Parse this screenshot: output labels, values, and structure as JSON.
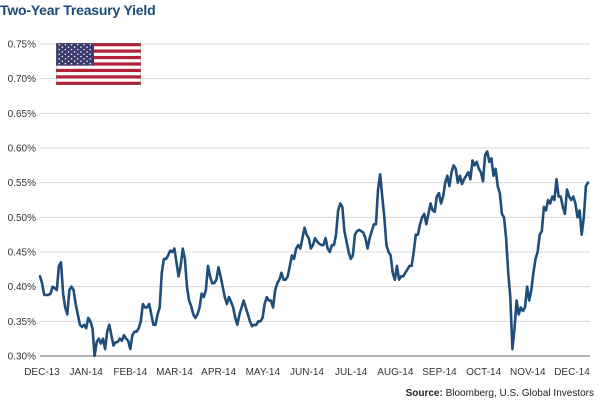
{
  "chart_data": {
    "type": "line",
    "title": "Two-Year Treasury Yield",
    "xlabel": "",
    "ylabel": "",
    "ylim": [
      0.3,
      0.75
    ],
    "yticks": [
      "0.30%",
      "0.35%",
      "0.40%",
      "0.45%",
      "0.50%",
      "0.55%",
      "0.60%",
      "0.65%",
      "0.70%",
      "0.75%"
    ],
    "xticks": [
      "DEC-13",
      "JAN-14",
      "FEB-14",
      "MAR-14",
      "APR-14",
      "MAY-14",
      "JUN-14",
      "JUL-14",
      "AUG-14",
      "SEP-14",
      "OCT-14",
      "NOV-14",
      "DEC-14"
    ],
    "grid": "horizontal",
    "line_color": "#1f4e7a",
    "series": [
      {
        "x": [
          0,
          1,
          2,
          3,
          4,
          5,
          6,
          7,
          8,
          9,
          10,
          11,
          12,
          13,
          14,
          15,
          16,
          17,
          18,
          19,
          20,
          21,
          22,
          23,
          24,
          25,
          26,
          27,
          28,
          29,
          30,
          31,
          32,
          33,
          34,
          35,
          36,
          37,
          38,
          39,
          40,
          41,
          42,
          43,
          44,
          45,
          46,
          47,
          48,
          49,
          50,
          51,
          52,
          53,
          54,
          55,
          56,
          57,
          58,
          59,
          60,
          61,
          62,
          63,
          64,
          65,
          66,
          67,
          68,
          69,
          70,
          71,
          72,
          73,
          74,
          75,
          76,
          77,
          78,
          79,
          80,
          81,
          82,
          83,
          84,
          85,
          86,
          87,
          88,
          89,
          90,
          91,
          92,
          93,
          94,
          95,
          96,
          97,
          98,
          99,
          100,
          101,
          102,
          103,
          104,
          105,
          106,
          107,
          108,
          109,
          110,
          111,
          112,
          113,
          114,
          115,
          116,
          117,
          118,
          119,
          120,
          121,
          122,
          123,
          124,
          125,
          126,
          127,
          128,
          129,
          130,
          131,
          132,
          133,
          134,
          135,
          136,
          137,
          138,
          139,
          140,
          141,
          142,
          143,
          144,
          145,
          146,
          147,
          148,
          149,
          150,
          151,
          152,
          153,
          154,
          155,
          156,
          157,
          158,
          159,
          160,
          161,
          162,
          163,
          164,
          165,
          166,
          167,
          168,
          169,
          170,
          171,
          172,
          173,
          174,
          175,
          176,
          177,
          178,
          179,
          180,
          181,
          182,
          183,
          184,
          185,
          186,
          187,
          188,
          189,
          190,
          191,
          192,
          193,
          194,
          195,
          196,
          197,
          198,
          199,
          200,
          201,
          202,
          203,
          204,
          205,
          206,
          207,
          208,
          209,
          210,
          211,
          212,
          213,
          214,
          215,
          216,
          217,
          218,
          219,
          220,
          221,
          222,
          223,
          224,
          225,
          226,
          227,
          228,
          229,
          230,
          231,
          232,
          233,
          234,
          235,
          236,
          237,
          238,
          239,
          240,
          241,
          242,
          243,
          244,
          245,
          246,
          247,
          248,
          249,
          250,
          251,
          252,
          253,
          254,
          255,
          256,
          257,
          258,
          259,
          260,
          261
        ],
        "values": [
          0.415,
          0.405,
          0.388,
          0.388,
          0.388,
          0.39,
          0.4,
          0.398,
          0.395,
          0.43,
          0.435,
          0.39,
          0.37,
          0.36,
          0.395,
          0.4,
          0.395,
          0.375,
          0.36,
          0.345,
          0.342,
          0.345,
          0.34,
          0.355,
          0.35,
          0.34,
          0.3,
          0.32,
          0.325,
          0.318,
          0.325,
          0.31,
          0.335,
          0.345,
          0.33,
          0.315,
          0.32,
          0.32,
          0.325,
          0.322,
          0.33,
          0.325,
          0.322,
          0.31,
          0.33,
          0.335,
          0.335,
          0.34,
          0.35,
          0.375,
          0.37,
          0.37,
          0.375,
          0.36,
          0.345,
          0.345,
          0.36,
          0.37,
          0.42,
          0.44,
          0.44,
          0.445,
          0.452,
          0.45,
          0.455,
          0.435,
          0.415,
          0.43,
          0.455,
          0.44,
          0.4,
          0.38,
          0.372,
          0.36,
          0.355,
          0.36,
          0.37,
          0.39,
          0.385,
          0.395,
          0.43,
          0.415,
          0.405,
          0.405,
          0.41,
          0.428,
          0.415,
          0.4,
          0.385,
          0.375,
          0.385,
          0.378,
          0.37,
          0.355,
          0.345,
          0.36,
          0.37,
          0.38,
          0.37,
          0.36,
          0.35,
          0.343,
          0.345,
          0.345,
          0.35,
          0.35,
          0.355,
          0.375,
          0.385,
          0.38,
          0.38,
          0.37,
          0.395,
          0.405,
          0.41,
          0.42,
          0.41,
          0.41,
          0.415,
          0.43,
          0.445,
          0.44,
          0.455,
          0.46,
          0.455,
          0.47,
          0.485,
          0.475,
          0.47,
          0.455,
          0.46,
          0.47,
          0.465,
          0.462,
          0.46,
          0.46,
          0.47,
          0.455,
          0.45,
          0.46,
          0.46,
          0.475,
          0.51,
          0.52,
          0.515,
          0.48,
          0.465,
          0.45,
          0.44,
          0.445,
          0.475,
          0.48,
          0.482,
          0.48,
          0.478,
          0.47,
          0.455,
          0.47,
          0.48,
          0.49,
          0.49,
          0.54,
          0.562,
          0.53,
          0.5,
          0.46,
          0.45,
          0.445,
          0.42,
          0.41,
          0.43,
          0.41,
          0.415,
          0.415,
          0.42,
          0.425,
          0.43,
          0.43,
          0.45,
          0.475,
          0.475,
          0.49,
          0.5,
          0.505,
          0.49,
          0.505,
          0.52,
          0.51,
          0.508,
          0.53,
          0.535,
          0.52,
          0.53,
          0.55,
          0.56,
          0.545,
          0.565,
          0.575,
          0.57,
          0.55,
          0.56,
          0.548,
          0.555,
          0.56,
          0.565,
          0.555,
          0.582,
          0.575,
          0.58,
          0.57,
          0.565,
          0.552,
          0.59,
          0.595,
          0.58,
          0.585,
          0.56,
          0.57,
          0.545,
          0.535,
          0.505,
          0.5,
          0.47,
          0.42,
          0.385,
          0.31,
          0.34,
          0.38,
          0.36,
          0.37,
          0.365,
          0.37,
          0.4,
          0.38,
          0.395,
          0.42,
          0.44,
          0.45,
          0.475,
          0.48,
          0.515,
          0.51,
          0.525,
          0.52,
          0.53,
          0.525,
          0.555,
          0.53,
          0.53,
          0.515,
          0.505,
          0.54,
          0.53,
          0.525,
          0.53,
          0.52,
          0.5,
          0.51,
          0.475,
          0.5,
          0.545,
          0.55
        ]
      }
    ]
  },
  "source": {
    "label": "Source:",
    "text": "Bloomberg, U.S. Global Investors"
  }
}
